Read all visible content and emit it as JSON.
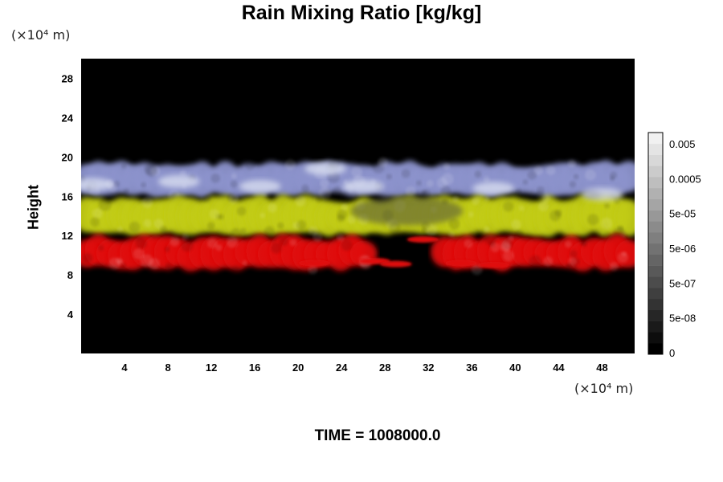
{
  "chart_data": {
    "type": "heatmap",
    "title": "Rain Mixing Ratio [kg/kg]",
    "ylabel": "Height",
    "y_unit": "(×10⁴ m)",
    "x_unit": "(×10⁴ m)",
    "xlim": [
      0,
      51
    ],
    "ylim": [
      0,
      30
    ],
    "x_ticks": [
      "4",
      "8",
      "12",
      "16",
      "20",
      "24",
      "28",
      "32",
      "36",
      "40",
      "44",
      "48"
    ],
    "y_ticks": [
      "4",
      "8",
      "12",
      "16",
      "20",
      "24",
      "28"
    ],
    "colorbar": {
      "tick_labels": [
        "0.005",
        "0.0005",
        "5e-05",
        "5e-06",
        "5e-07",
        "5e-08",
        "0"
      ],
      "colors": [
        "#000000",
        "#0d0d0d",
        "#1a1a1a",
        "#262626",
        "#333333",
        "#3f3f3f",
        "#4c4c4c",
        "#595959",
        "#656565",
        "#727272",
        "#7f7f7f",
        "#8b8b8b",
        "#989898",
        "#a5a5a5",
        "#b1b1b1",
        "#bebebe",
        "#cbcbcb",
        "#d8d8d8",
        "#e4e4e4",
        "#f1f1f1"
      ]
    },
    "layers": [
      {
        "name": "red",
        "color": "#e01010",
        "y_range": [
          8.5,
          12
        ]
      },
      {
        "name": "yellow",
        "color": "#c2cc18",
        "y_range": [
          12,
          16
        ]
      },
      {
        "name": "blue",
        "color": "#8c93cc",
        "y_range": [
          16,
          19.5
        ]
      }
    ],
    "footer": "TIME = 1008000.0",
    "grid": false
  }
}
